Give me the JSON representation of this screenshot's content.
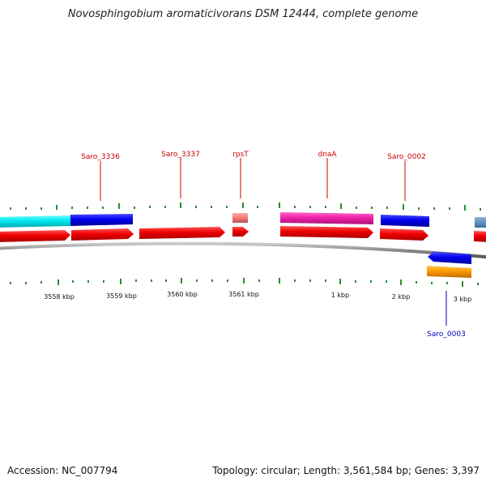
{
  "title": "Novosphingobium aromaticivorans DSM 12444, complete genome",
  "footer": {
    "accession": "Accession: NC_007794",
    "summary": "Topology: circular; Length: 3,561,584 bp; Genes: 3,397"
  },
  "colors": {
    "label_red": "#cc0000",
    "label_blue": "#0000bb",
    "tick_green": "#2e8b2e",
    "backbone": "#888888"
  },
  "gene_labels": [
    {
      "id": "saro3336",
      "text": "Saro_3336",
      "color": "#cc0000"
    },
    {
      "id": "saro3337",
      "text": "Saro_3337",
      "color": "#cc0000"
    },
    {
      "id": "rpsT",
      "text": "rpsT",
      "color": "#cc0000"
    },
    {
      "id": "dnaA",
      "text": "dnaA",
      "color": "#cc0000"
    },
    {
      "id": "saro0002",
      "text": "Saro_0002",
      "color": "#cc0000"
    },
    {
      "id": "saro0003",
      "text": "Saro_0003",
      "color": "#0000bb"
    }
  ],
  "kbp_labels": [
    {
      "id": "k3558",
      "text": "3558 kbp"
    },
    {
      "id": "k3559",
      "text": "3559 kbp"
    },
    {
      "id": "k3560",
      "text": "3560 kbp"
    },
    {
      "id": "k3561",
      "text": "3561 kbp"
    },
    {
      "id": "k1",
      "text": "1 kbp"
    },
    {
      "id": "k2",
      "text": "2 kbp"
    },
    {
      "id": "k3",
      "text": "3 kbp"
    }
  ]
}
